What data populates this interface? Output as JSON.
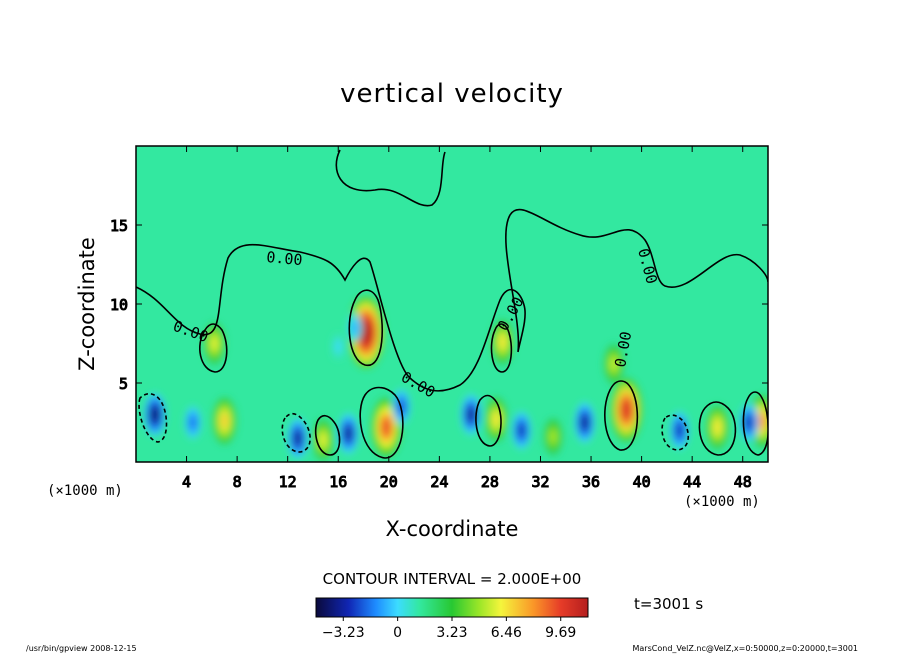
{
  "chart_data": {
    "type": "heatmap",
    "title": "vertical velocity",
    "xlabel": "X-coordinate",
    "ylabel": "Z-coordinate",
    "x_unit": "(×1000 m)",
    "z_unit": "(×1000 m)",
    "xlim": [
      0,
      50
    ],
    "ylim": [
      0,
      20
    ],
    "x_ticks": [
      4,
      8,
      12,
      16,
      20,
      24,
      28,
      32,
      36,
      40,
      44,
      48
    ],
    "y_ticks": [
      5,
      10,
      15
    ],
    "contour_label": "0.00",
    "contour_interval_text": "CONTOUR INTERVAL = 2.000E+00",
    "time_text": "t=3001 s",
    "colorbar": {
      "range": [
        -4.85,
        11.31
      ],
      "tick_values": [
        -3.23,
        0,
        3.23,
        6.46,
        9.69
      ],
      "tick_labels": [
        "−3.23",
        "0",
        "3.23",
        "6.46",
        "9.69"
      ]
    },
    "features": [
      {
        "kind": "updraft",
        "x": 6.2,
        "z": 7.5,
        "peak": 4.5
      },
      {
        "kind": "updraft",
        "x": 18.2,
        "z": 8.2,
        "peak": 11.0
      },
      {
        "kind": "updraft",
        "x": 19.8,
        "z": 2.2,
        "peak": 8.0
      },
      {
        "kind": "updraft",
        "x": 7.0,
        "z": 2.6,
        "peak": 5.5
      },
      {
        "kind": "updraft",
        "x": 29.0,
        "z": 7.6,
        "peak": 5.0
      },
      {
        "kind": "updraft",
        "x": 28.5,
        "z": 2.7,
        "peak": 5.0
      },
      {
        "kind": "updraft",
        "x": 38.8,
        "z": 3.3,
        "peak": 9.0
      },
      {
        "kind": "updraft",
        "x": 37.8,
        "z": 6.2,
        "peak": 4.0
      },
      {
        "kind": "updraft",
        "x": 14.8,
        "z": 1.4,
        "peak": 4.5
      },
      {
        "kind": "updraft",
        "x": 46.0,
        "z": 2.2,
        "peak": 5.0
      },
      {
        "kind": "updraft",
        "x": 49.5,
        "z": 2.6,
        "peak": 6.5
      },
      {
        "kind": "updraft",
        "x": 33.0,
        "z": 1.6,
        "peak": 3.5
      },
      {
        "kind": "downdraft",
        "x": 1.5,
        "z": 3.0,
        "peak": -4.5
      },
      {
        "kind": "downdraft",
        "x": 4.5,
        "z": 2.5,
        "peak": -2.5
      },
      {
        "kind": "downdraft",
        "x": 12.8,
        "z": 1.5,
        "peak": -4.0
      },
      {
        "kind": "downdraft",
        "x": 16.8,
        "z": 1.8,
        "peak": -4.0
      },
      {
        "kind": "downdraft",
        "x": 21.0,
        "z": 3.5,
        "peak": -3.0
      },
      {
        "kind": "downdraft",
        "x": 26.5,
        "z": 3.0,
        "peak": -4.0
      },
      {
        "kind": "downdraft",
        "x": 30.5,
        "z": 2.0,
        "peak": -3.5
      },
      {
        "kind": "downdraft",
        "x": 35.5,
        "z": 2.5,
        "peak": -4.0
      },
      {
        "kind": "downdraft",
        "x": 43.0,
        "z": 2.0,
        "peak": -3.5
      },
      {
        "kind": "downdraft",
        "x": 48.5,
        "z": 2.5,
        "peak": -3.5
      },
      {
        "kind": "downdraft",
        "x": 17.3,
        "z": 8.5,
        "peak": -1.5
      },
      {
        "kind": "weak-downdraft",
        "x": 16.0,
        "z": 7.3,
        "peak": -0.8
      }
    ]
  },
  "footer": {
    "left": "/usr/bin/gpview   2008-12-15",
    "right": "MarsCond_VelZ.nc@VelZ,x=0:50000,z=0:20000,t=3001"
  },
  "colors": {
    "background_field": "#33e8a0",
    "contour_line": "#000000"
  }
}
